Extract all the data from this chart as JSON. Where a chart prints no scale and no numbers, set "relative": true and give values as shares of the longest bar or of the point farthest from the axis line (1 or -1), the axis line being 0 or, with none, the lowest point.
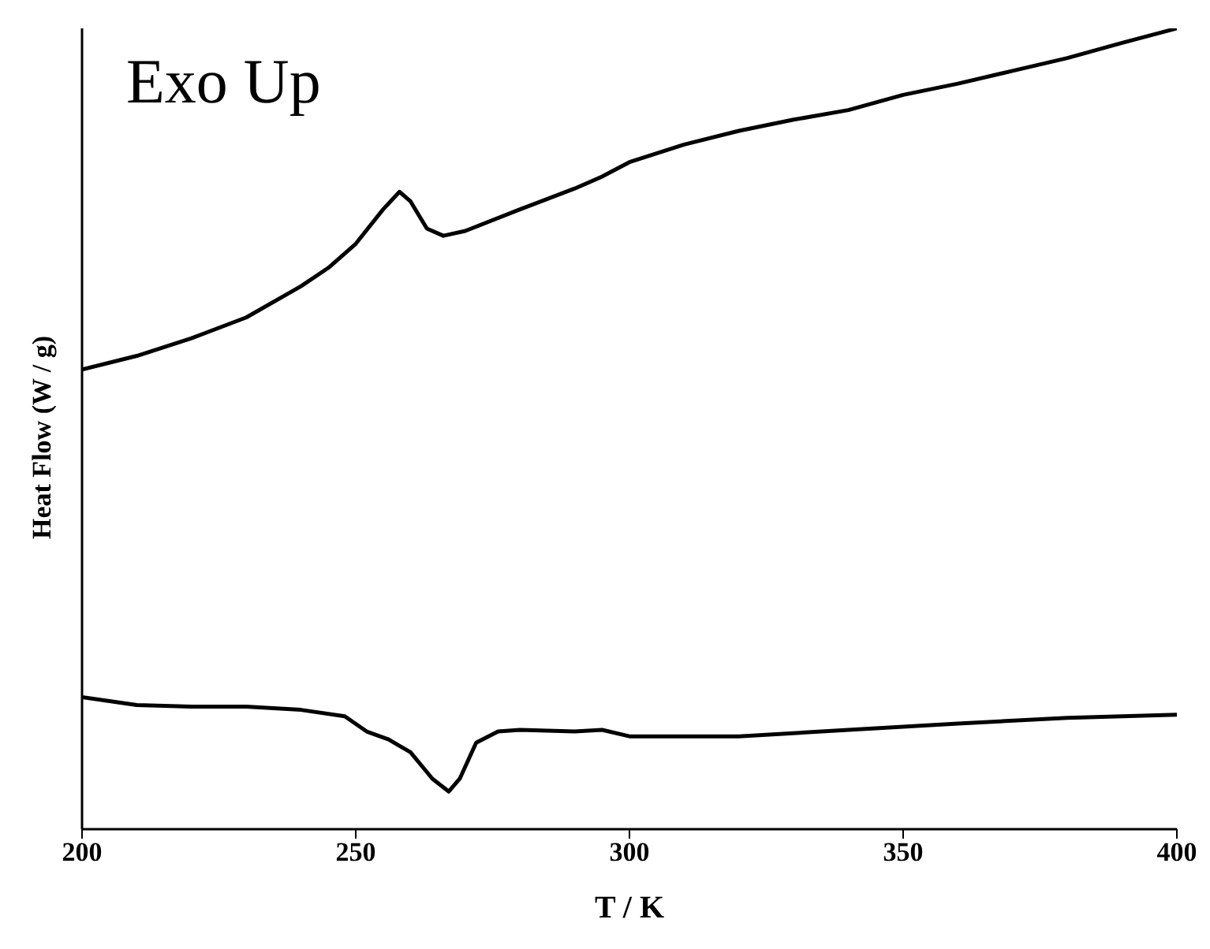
{
  "chart_data": {
    "type": "line",
    "relative": true,
    "xlabel": "T / K",
    "ylabel": "Heat Flow (W / g)",
    "annotations": [
      "Exo Up"
    ],
    "xlim": [
      200,
      400
    ],
    "xticks": [
      200,
      250,
      300,
      350,
      400
    ],
    "tick_labels": "x",
    "marker": "none",
    "line_style": "solid",
    "series": [
      {
        "color": "#000000",
        "x": [
          200,
          210,
          220,
          230,
          240,
          245,
          250,
          255,
          258,
          260,
          263,
          266,
          270,
          280,
          290,
          295,
          300,
          310,
          320,
          330,
          340,
          350,
          360,
          370,
          380,
          390,
          400
        ],
        "values": [
          0.574,
          0.591,
          0.613,
          0.639,
          0.678,
          0.701,
          0.731,
          0.774,
          0.796,
          0.784,
          0.75,
          0.741,
          0.747,
          0.774,
          0.8,
          0.815,
          0.833,
          0.855,
          0.872,
          0.886,
          0.898,
          0.917,
          0.931,
          0.947,
          0.963,
          0.982,
          1
        ]
      },
      {
        "color": "#000000",
        "x": [
          200,
          210,
          220,
          230,
          240,
          248,
          252,
          256,
          260,
          264,
          267,
          269,
          272,
          276,
          280,
          290,
          295,
          300,
          320,
          340,
          360,
          380,
          400
        ],
        "values": [
          0.165,
          0.155,
          0.153,
          0.153,
          0.149,
          0.141,
          0.122,
          0.112,
          0.096,
          0.063,
          0.047,
          0.063,
          0.108,
          0.122,
          0.124,
          0.122,
          0.124,
          0.116,
          0.116,
          0.124,
          0.132,
          0.139,
          0.143
        ]
      }
    ]
  }
}
